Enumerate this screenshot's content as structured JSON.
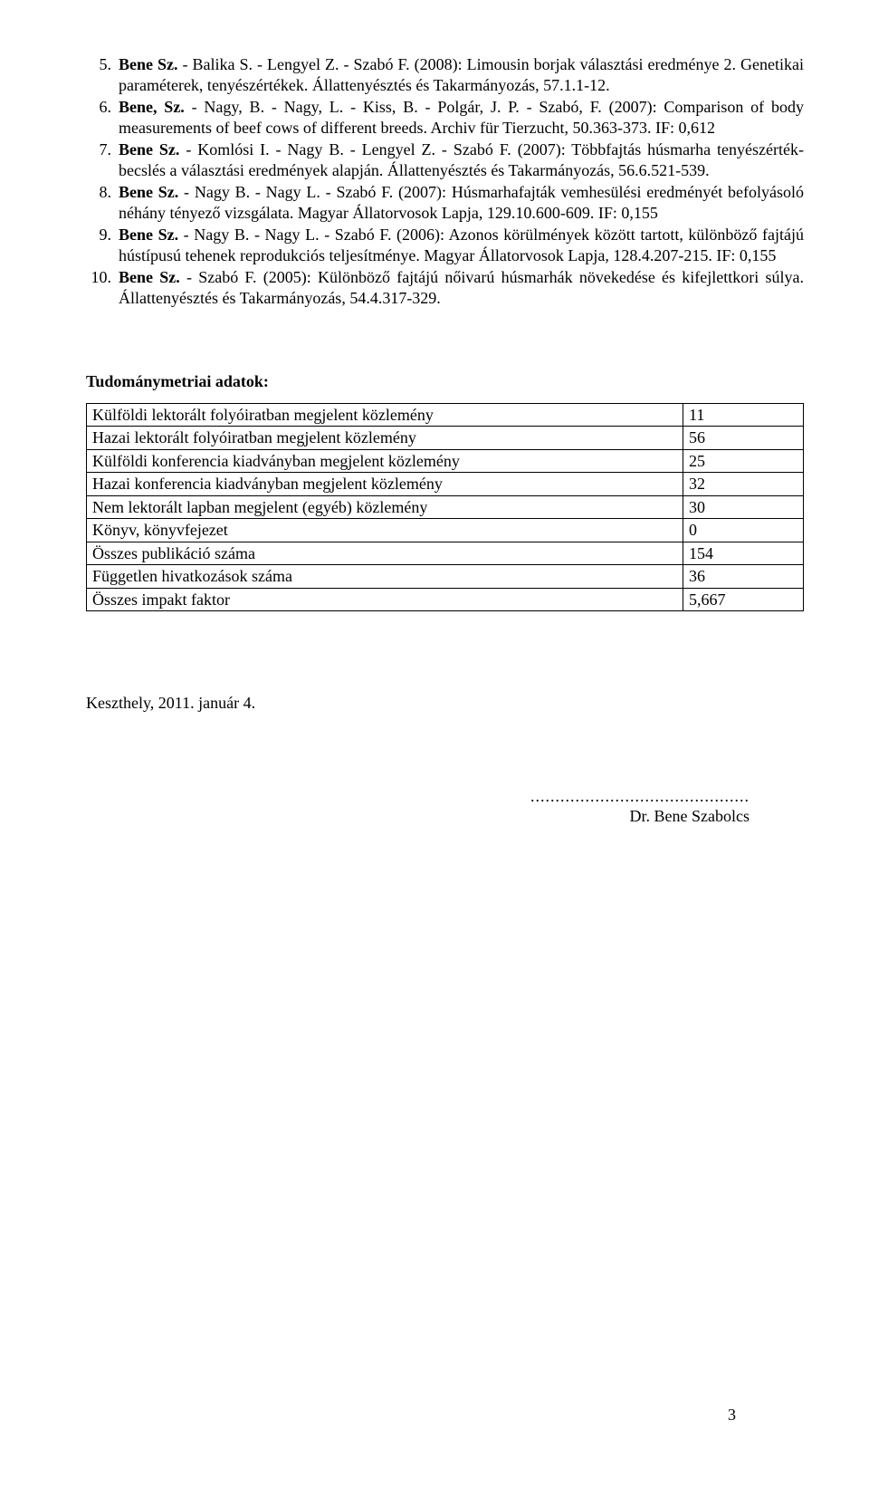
{
  "references": [
    {
      "num": "5.",
      "html": "<b>Bene Sz.</b> - Balika S. - Lengyel Z. - Szabó F. (2008): Limousin borjak választási eredménye 2. Genetikai paraméterek, tenyészértékek. Állattenyésztés és Takarmányozás, 57.1.1-12."
    },
    {
      "num": "6.",
      "html": "<b>Bene, Sz.</b> - Nagy, B. - Nagy, L. - Kiss, B. - Polgár, J. P. - Szabó, F. (2007): Comparison of body measurements of beef cows of different breeds. Archiv für Tierzucht, 50.363-373. IF: 0,612"
    },
    {
      "num": "7.",
      "html": "<b>Bene Sz.</b> - Komlósi I. - Nagy B. - Lengyel Z. - Szabó F. (2007): Többfajtás húsmarha tenyészérték-becslés a választási eredmények alapján. Állattenyésztés és Takarmányozás, 56.6.521-539."
    },
    {
      "num": "8.",
      "html": "<b>Bene Sz.</b> - Nagy B. - Nagy L. - Szabó F. (2007): Húsmarhafajták vemhesülési eredményét befolyásoló néhány tényező vizsgálata. Magyar Állatorvosok Lapja, 129.10.600-609. IF: 0,155"
    },
    {
      "num": "9.",
      "html": "<b>Bene Sz.</b> - Nagy B. - Nagy L. - Szabó F. (2006): Azonos körülmények között tartott, különböző fajtájú hústípusú tehenek reprodukciós teljesítménye. Magyar Állatorvosok Lapja, 128.4.207-215. IF: 0,155"
    },
    {
      "num": "10.",
      "html": "<b>Bene Sz.</b> - Szabó F. (2005): Különböző fajtájú nőivarú húsmarhák növekedése és kifejlettkori súlya. Állattenyésztés és Takarmányozás, 54.4.317-329."
    }
  ],
  "metrics_title": "Tudománymetriai adatok:",
  "metrics": [
    {
      "label": "Külföldi lektorált folyóiratban megjelent közlemény",
      "value": "11"
    },
    {
      "label": "Hazai lektorált folyóiratban megjelent közlemény",
      "value": "56"
    },
    {
      "label": "Külföldi konferencia kiadványban megjelent közlemény",
      "value": "25"
    },
    {
      "label": "Hazai konferencia kiadványban megjelent közlemény",
      "value": "32"
    },
    {
      "label": "Nem lektorált lapban megjelent (egyéb) közlemény",
      "value": "30"
    },
    {
      "label": "Könyv, könyvfejezet",
      "value": "0"
    },
    {
      "label": "Összes publikáció száma",
      "value": "154"
    },
    {
      "label": "Független hivatkozások száma",
      "value": "36"
    },
    {
      "label": "Összes impakt faktor",
      "value": "5,667"
    }
  ],
  "date_line": "Keszthely, 2011. január 4.",
  "signature_dots": "............................................",
  "signature_name": "Dr. Bene Szabolcs",
  "page_number": "3"
}
